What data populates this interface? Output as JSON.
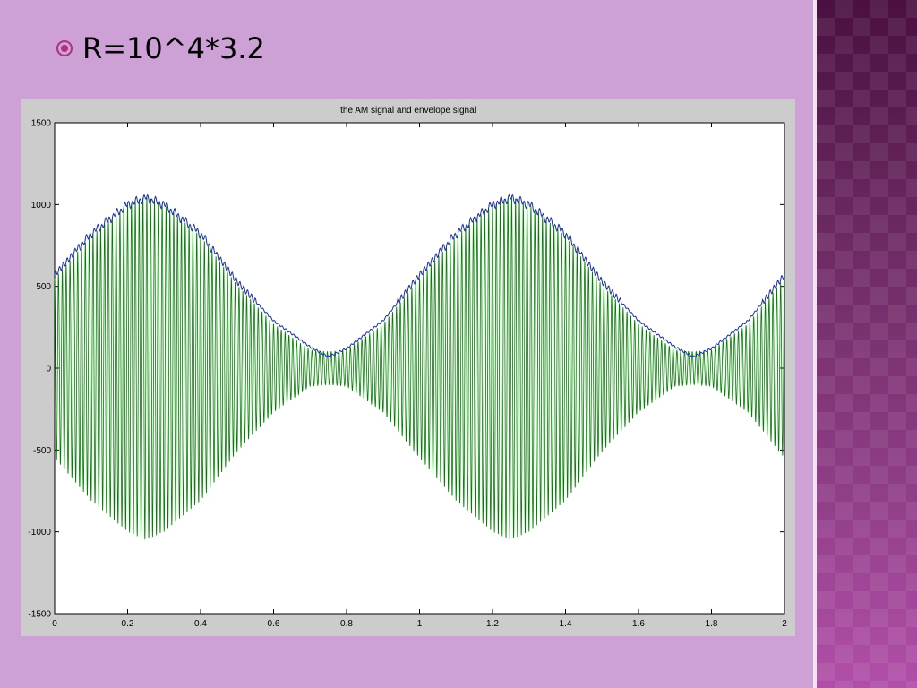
{
  "slide": {
    "bullet_text": "R=10^4*3.2"
  },
  "colors": {
    "background": "#cda0d6",
    "figure_bg": "#cccccc",
    "am_signal": "#007f00",
    "envelope": "#1a2fa0"
  },
  "chart_data": {
    "type": "line",
    "title": "the AM signal  and  envelope signal",
    "xlabel": "",
    "ylabel": "",
    "xlim": [
      0,
      2
    ],
    "ylim": [
      -1500,
      1500
    ],
    "x_ticks": [
      "0",
      "0.2",
      "0.4",
      "0.6",
      "0.8",
      "1",
      "1.2",
      "1.4",
      "1.6",
      "1.8",
      "2"
    ],
    "y_ticks": [
      "1500",
      "1000",
      "500",
      "0",
      "-500",
      "-1000",
      "-1500"
    ],
    "grid": false,
    "legend": "none",
    "series": [
      {
        "style": "green oscillating AM waveform",
        "x": [
          0,
          0.1,
          0.2,
          0.25,
          0.3,
          0.4,
          0.5,
          0.6,
          0.7,
          0.75,
          0.8,
          0.9,
          1.0,
          1.1,
          1.2,
          1.25,
          1.3,
          1.4,
          1.5,
          1.6,
          1.7,
          1.75,
          1.8,
          1.9,
          2.0
        ],
        "upper_peak": [
          550,
          810,
          1000,
          1050,
          1000,
          810,
          510,
          270,
          110,
          100,
          110,
          270,
          550,
          810,
          1000,
          1050,
          1000,
          810,
          510,
          270,
          110,
          100,
          110,
          270,
          550
        ],
        "lower_peak": [
          -550,
          -810,
          -1000,
          -1050,
          -1000,
          -810,
          -510,
          -270,
          -110,
          -100,
          -110,
          -270,
          -550,
          -810,
          -1000,
          -1050,
          -1000,
          -810,
          -510,
          -270,
          -110,
          -100,
          -110,
          -270,
          -550
        ],
        "carrier_cycles": 190
      },
      {
        "style": "blue envelope",
        "x": [
          0,
          0.1,
          0.2,
          0.25,
          0.3,
          0.4,
          0.5,
          0.6,
          0.7,
          0.75,
          0.8,
          0.9,
          1.0,
          1.1,
          1.2,
          1.25,
          1.3,
          1.4,
          1.5,
          1.6,
          1.7,
          1.75,
          1.8,
          1.9,
          2.0
        ],
        "values": [
          570,
          820,
          1000,
          1040,
          1000,
          820,
          530,
          290,
          130,
          70,
          120,
          290,
          570,
          820,
          1000,
          1040,
          1000,
          820,
          530,
          290,
          130,
          70,
          120,
          290,
          570
        ]
      }
    ]
  }
}
